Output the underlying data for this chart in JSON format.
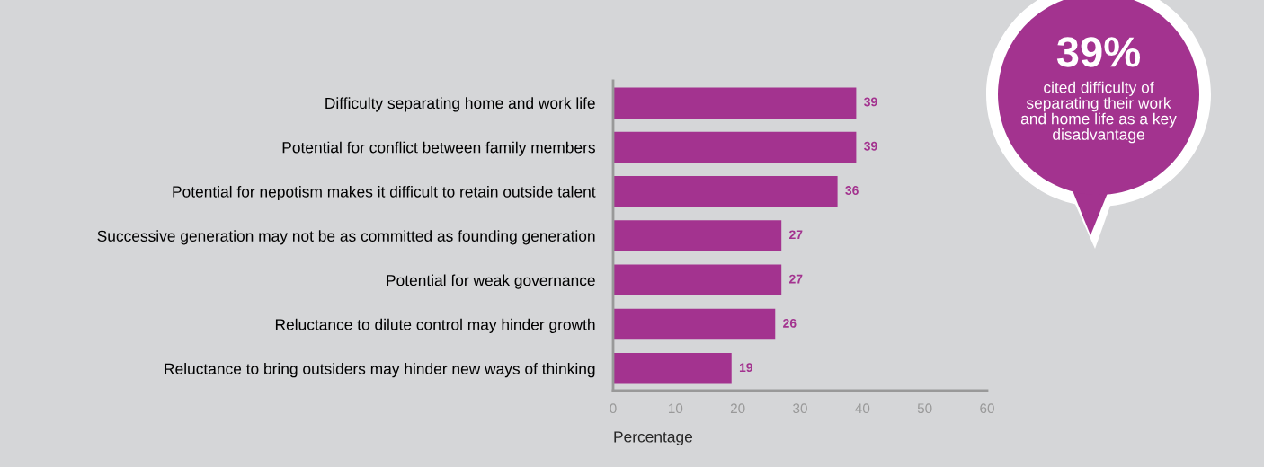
{
  "chart_data": {
    "type": "bar",
    "orientation": "horizontal",
    "categories": [
      "Difficulty separating home and work life",
      "Potential for conflict between family members",
      "Potential for nepotism makes it difficult to retain outside talent",
      "Successive generation may not be as committed as founding generation",
      "Potential for weak governance",
      "Reluctance to dilute control may hinder growth",
      "Reluctance to bring outsiders may hinder new ways of thinking"
    ],
    "values": [
      39,
      39,
      36,
      27,
      27,
      26,
      19
    ],
    "color": "#a3338f",
    "xlim": [
      0,
      60
    ],
    "xticks": [
      0,
      10,
      20,
      30,
      40,
      50,
      60
    ],
    "xlabel": "Percentage",
    "data_labels": true,
    "grid": false,
    "legend": false,
    "annotations": [
      "39%",
      "cited difficulty of\nseparating their work\nand home life as a key\ndisadvantage"
    ]
  }
}
